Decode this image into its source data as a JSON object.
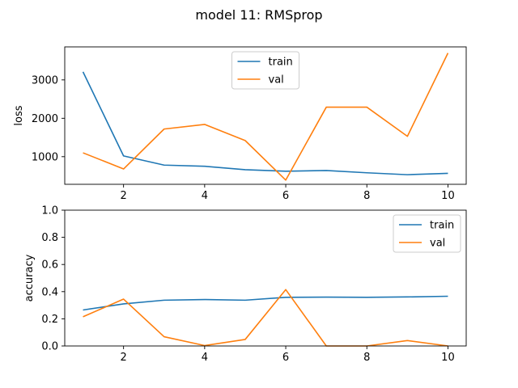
{
  "suptitle": "model 11: RMSprop",
  "chart_data": [
    {
      "type": "line",
      "ylabel": "loss",
      "xlim": [
        0.55,
        10.45
      ],
      "ylim": [
        280,
        3860
      ],
      "x": [
        1,
        2,
        3,
        4,
        5,
        6,
        7,
        8,
        9,
        10
      ],
      "xticks": [
        2,
        4,
        6,
        8,
        10
      ],
      "yticks": [
        1000,
        2000,
        3000
      ],
      "legend_position": "top-center",
      "series": [
        {
          "name": "train",
          "color": "#1f77b4",
          "values": [
            3210,
            1020,
            780,
            750,
            660,
            620,
            640,
            580,
            530,
            565
          ]
        },
        {
          "name": "val",
          "color": "#ff7f0e",
          "values": [
            1100,
            680,
            1720,
            1840,
            1420,
            390,
            2290,
            2290,
            1530,
            3700
          ]
        }
      ]
    },
    {
      "type": "line",
      "ylabel": "accuracy",
      "xlim": [
        0.55,
        10.45
      ],
      "ylim": [
        0,
        1
      ],
      "x": [
        1,
        2,
        3,
        4,
        5,
        6,
        7,
        8,
        9,
        10
      ],
      "xticks": [
        2,
        4,
        6,
        8,
        10
      ],
      "yticks": [
        0.0,
        0.2,
        0.4,
        0.6,
        0.8,
        1.0
      ],
      "legend_position": "top-right",
      "series": [
        {
          "name": "train",
          "color": "#1f77b4",
          "values": [
            0.265,
            0.31,
            0.337,
            0.342,
            0.337,
            0.358,
            0.36,
            0.358,
            0.361,
            0.366
          ]
        },
        {
          "name": "val",
          "color": "#ff7f0e",
          "values": [
            0.215,
            0.345,
            0.068,
            0.003,
            0.048,
            0.415,
            0.0,
            0.0,
            0.04,
            0.0
          ]
        }
      ]
    }
  ]
}
